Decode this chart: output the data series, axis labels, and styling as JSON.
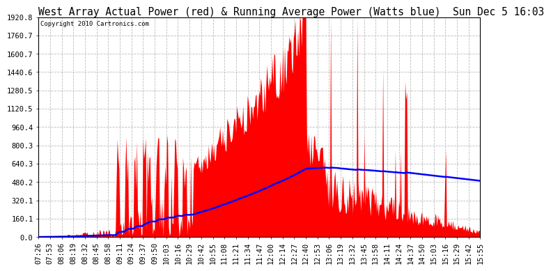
{
  "title": "West Array Actual Power (red) & Running Average Power (Watts blue)  Sun Dec 5 16:03",
  "copyright": "Copyright 2010 Cartronics.com",
  "y_max": 1920.8,
  "y_ticks": [
    0.0,
    160.1,
    320.1,
    480.2,
    640.3,
    800.3,
    960.4,
    1120.5,
    1280.5,
    1440.6,
    1600.7,
    1760.7,
    1920.8
  ],
  "background_color": "#ffffff",
  "grid_color": "#bbbbbb",
  "actual_color": "#ff0000",
  "avg_color": "#0000ff",
  "x_labels": [
    "07:26",
    "07:53",
    "08:06",
    "08:19",
    "08:32",
    "08:45",
    "08:58",
    "09:11",
    "09:24",
    "09:37",
    "09:50",
    "10:03",
    "10:16",
    "10:29",
    "10:42",
    "10:55",
    "11:08",
    "11:21",
    "11:34",
    "11:47",
    "12:00",
    "12:14",
    "12:27",
    "12:40",
    "12:53",
    "13:06",
    "13:19",
    "13:32",
    "13:45",
    "13:58",
    "14:11",
    "14:24",
    "14:37",
    "14:50",
    "15:03",
    "15:16",
    "15:29",
    "15:42",
    "15:55"
  ],
  "title_fontsize": 10.5,
  "tick_fontsize": 7.5,
  "copyright_fontsize": 6.5
}
